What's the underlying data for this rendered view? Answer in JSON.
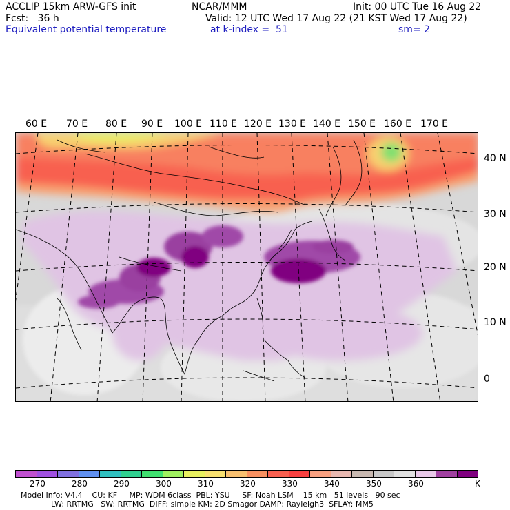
{
  "header": {
    "line1_left": "ACCLIP 15km ARW-GFS init",
    "line1_center": "NCAR/MMM",
    "line1_right": "Init: 00 UTC Tue 16 Aug 22",
    "line2_left": "Fcst:   36 h",
    "line2_right": "Valid: 12 UTC Wed 17 Aug 22 (21 KST Wed 17 Aug 22)",
    "line3_left": "Equivalent potential temperature",
    "line3_center": "at k-index =  51",
    "line3_right": "sm= 2"
  },
  "map": {
    "lon_labels": [
      "60 E",
      "70 E",
      "80 E",
      "90 E",
      "100 E",
      "110 E",
      "120 E",
      "130 E",
      "140 E",
      "150 E",
      "160 E",
      "170 E"
    ],
    "lat_labels": [
      "40 N",
      "30 N",
      "20 N",
      "10 N",
      "0"
    ]
  },
  "colorbar": {
    "colors": [
      "#c050d0",
      "#a050e0",
      "#8070e0",
      "#6090f0",
      "#30c0c0",
      "#30d090",
      "#40e070",
      "#a0f060",
      "#e8f060",
      "#f8e070",
      "#f8c070",
      "#f89060",
      "#f86050",
      "#f84040",
      "#f8a080",
      "#e8b8b0",
      "#c8b8b0",
      "#c8c8c8",
      "#e0e0e0",
      "#e8c8e8",
      "#a040a0",
      "#800080"
    ],
    "labels": [
      "270",
      "280",
      "290",
      "300",
      "310",
      "320",
      "330",
      "340",
      "350",
      "360",
      "K"
    ]
  },
  "footer": {
    "line1": "Model Info: V4.4    CU: KF     MP: WDM 6class  PBL: YSU     SF: Noah LSM    15 km   51 levels   90 sec",
    "line2": "LW: RRTMG   SW: RRTMG  DIFF: simple KM: 2D Smagor DAMP: Rayleigh3  SFLAY: MM5"
  }
}
